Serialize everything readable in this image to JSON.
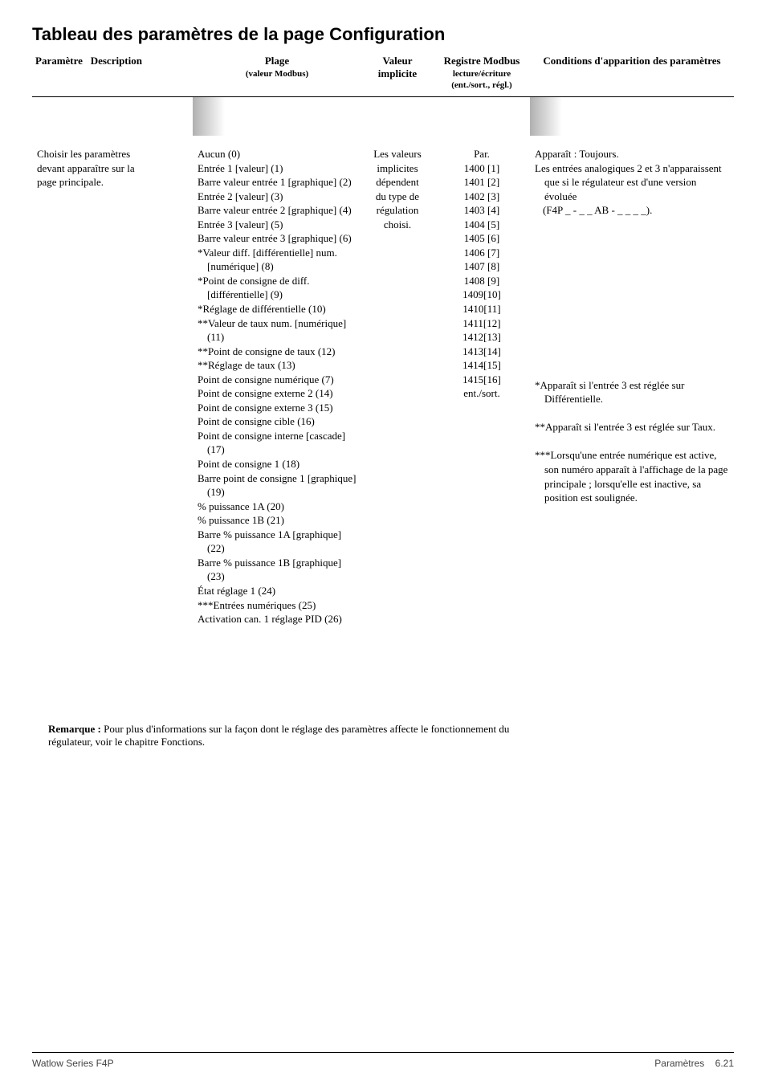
{
  "title": "Tableau des paramètres de la page Configuration",
  "columns": {
    "param": "Paramètre",
    "desc": "Description",
    "plage": "Plage",
    "plage_sub": "(valeur Modbus)",
    "valeur": "Valeur implicite",
    "registre": "Registre Modbus",
    "registre_sub1": "lecture/écriture",
    "registre_sub2": "(ent./sort., régl.)",
    "conditions": "Conditions d'apparition des paramètres"
  },
  "row": {
    "desc_l1": "Choisir les paramètres",
    "desc_l2": "devant apparaître sur la",
    "desc_l3": "page principale.",
    "plage": [
      "Aucun (0)",
      "Entrée 1 [valeur] (1)",
      "Barre valeur entrée 1 [graphique] (2)",
      "Entrée 2 [valeur] (3)",
      "Barre valeur entrée 2 [graphique] (4)",
      "Entrée 3 [valeur] (5)",
      "Barre valeur entrée 3 [graphique] (6)",
      "*Valeur diff. [différentielle] num. [numérique] (8)",
      "*Point de consigne de diff. [différentielle] (9)",
      "*Réglage de différentielle (10)",
      "**Valeur de taux num. [numérique] (11)",
      "**Point de consigne de taux (12)",
      "**Réglage de taux (13)",
      "Point de consigne numérique (7)",
      "Point de consigne externe 2 (14)",
      "Point de consigne externe 3 (15)",
      "Point de consigne cible (16)",
      "Point de consigne interne [cascade] (17)",
      "Point de consigne 1 (18)",
      "Barre point de consigne 1 [graphique] (19)",
      "% puissance 1A (20)",
      "% puissance 1B (21)",
      "Barre % puissance 1A [graphique] (22)",
      "Barre % puissance 1B [graphique] (23)",
      "État réglage 1 (24)",
      "***Entrées numériques (25)",
      "Activation can. 1 réglage PID (26)"
    ],
    "valeur": [
      "Les valeurs",
      "implicites",
      "dépendent",
      "du type de",
      "régulation",
      "choisi."
    ],
    "registre_head": "Par.",
    "registre": [
      "1400 [1]",
      "1401 [2]",
      "1402 [3]",
      "1403 [4]",
      "1404 [5]",
      "1405 [6]",
      "1406 [7]",
      "1407 [8]",
      "1408 [9]",
      "1409[10]",
      "1410[11]",
      "1411[12]",
      "1412[13]",
      "1413[14]",
      "1414[15]",
      "1415[16]",
      "ent./sort."
    ],
    "conditions_top": [
      "Apparaît : Toujours.",
      "Les entrées analogiques 2 et 3 n'apparaissent que si le régulateur est d'une version évoluée",
      "(F4P _ - _ _ AB - _ _ _ _)."
    ],
    "conditions_mid": [
      "*Apparaît si l'entrée 3 est réglée sur Différentielle.",
      "",
      "**Apparaît si l'entrée 3 est réglée sur Taux.",
      "",
      "***Lorsqu'une entrée numérique est active, son numéro apparaît à l'affichage de la page principale ; lorsqu'elle est inactive, sa position est soulignée."
    ]
  },
  "remark_bold": "Remarque :",
  "remark_text": " Pour plus d'informations sur la façon dont le réglage des paramètres affecte le fonctionnement du régulateur, voir le chapitre Fonctions.",
  "footer_left": "Watlow Series F4P",
  "footer_right_a": "Paramètres",
  "footer_right_b": "6.21"
}
